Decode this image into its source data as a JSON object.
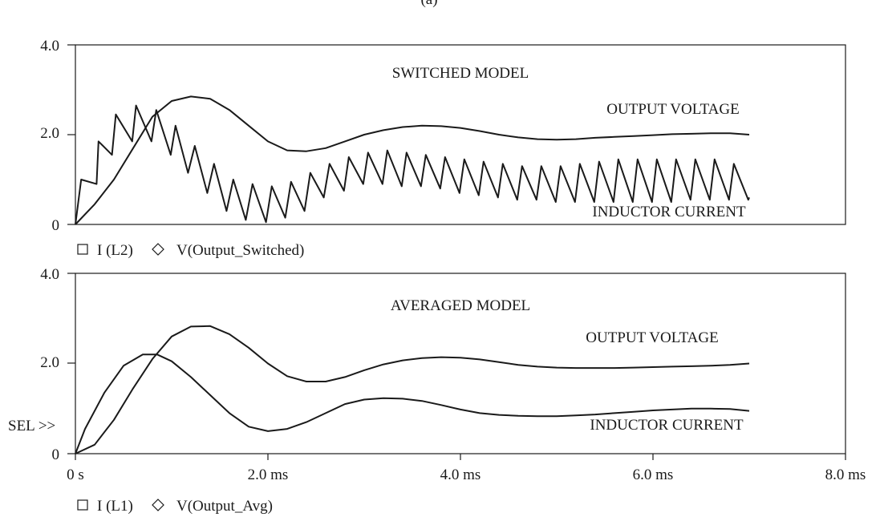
{
  "header": {
    "label": "(a)"
  },
  "chart_data": [
    {
      "type": "line",
      "title": "SWITCHED MODEL",
      "xlabel": "",
      "ylabel": "",
      "xlim": [
        0,
        8.0
      ],
      "ylim": [
        0,
        4.0
      ],
      "y_ticks": [
        "0",
        "2.0",
        "4.0"
      ],
      "x_ticks": [],
      "grid": false,
      "annotations": [
        "SWITCHED MODEL",
        "OUTPUT VOLTAGE",
        "INDUCTOR CURRENT"
      ],
      "legend": [
        "I (L2)",
        "V(Output_Switched)"
      ],
      "series": [
        {
          "name": "I (L2)",
          "x": [
            0,
            0.06,
            0.22,
            0.24,
            0.38,
            0.42,
            0.59,
            0.63,
            0.79,
            0.84,
            0.99,
            1.04,
            1.17,
            1.24,
            1.37,
            1.44,
            1.57,
            1.64,
            1.77,
            1.84,
            1.98,
            2.04,
            2.18,
            2.24,
            2.38,
            2.44,
            2.58,
            2.64,
            2.79,
            2.84,
            2.99,
            3.04,
            3.19,
            3.24,
            3.39,
            3.44,
            3.59,
            3.64,
            3.79,
            3.84,
            3.99,
            4.04,
            4.19,
            4.24,
            4.39,
            4.44,
            4.59,
            4.64,
            4.79,
            4.84,
            4.99,
            5.04,
            5.19,
            5.24,
            5.39,
            5.44,
            5.59,
            5.64,
            5.79,
            5.84,
            5.99,
            6.04,
            6.19,
            6.24,
            6.39,
            6.44,
            6.59,
            6.64,
            6.79,
            6.84,
            6.99,
            7.0
          ],
          "values": [
            0,
            1.0,
            0.9,
            1.85,
            1.55,
            2.45,
            1.85,
            2.65,
            1.85,
            2.55,
            1.55,
            2.2,
            1.15,
            1.75,
            0.7,
            1.35,
            0.3,
            1.0,
            0.1,
            0.9,
            0.05,
            0.85,
            0.15,
            0.95,
            0.3,
            1.15,
            0.6,
            1.35,
            0.75,
            1.5,
            0.9,
            1.6,
            0.9,
            1.65,
            0.85,
            1.6,
            0.85,
            1.55,
            0.8,
            1.5,
            0.7,
            1.45,
            0.65,
            1.4,
            0.6,
            1.35,
            0.55,
            1.3,
            0.55,
            1.3,
            0.5,
            1.3,
            0.5,
            1.35,
            0.5,
            1.4,
            0.5,
            1.45,
            0.5,
            1.45,
            0.5,
            1.45,
            0.5,
            1.45,
            0.55,
            1.45,
            0.55,
            1.45,
            0.55,
            1.35,
            0.55,
            0.6
          ]
        },
        {
          "name": "V(Output_Switched)",
          "x": [
            0,
            0.2,
            0.4,
            0.6,
            0.8,
            1.0,
            1.2,
            1.4,
            1.6,
            1.8,
            2.0,
            2.2,
            2.4,
            2.6,
            2.8,
            3.0,
            3.2,
            3.4,
            3.6,
            3.8,
            4.0,
            4.2,
            4.4,
            4.6,
            4.8,
            5.0,
            5.2,
            5.4,
            5.6,
            5.8,
            6.0,
            6.2,
            6.4,
            6.6,
            6.8,
            7.0
          ],
          "values": [
            0,
            0.45,
            1.0,
            1.7,
            2.4,
            2.75,
            2.85,
            2.8,
            2.55,
            2.2,
            1.85,
            1.65,
            1.63,
            1.7,
            1.85,
            2.0,
            2.1,
            2.17,
            2.2,
            2.19,
            2.15,
            2.08,
            2.0,
            1.94,
            1.9,
            1.89,
            1.9,
            1.93,
            1.95,
            1.97,
            1.99,
            2.01,
            2.02,
            2.03,
            2.03,
            2.0
          ]
        }
      ]
    },
    {
      "type": "line",
      "title": "AVERAGED MODEL",
      "xlabel": "",
      "ylabel": "",
      "xlim": [
        0,
        8.0
      ],
      "ylim": [
        0,
        4.0
      ],
      "y_ticks": [
        "0",
        "2.0",
        "4.0"
      ],
      "x_ticks": [
        "0 s",
        "2.0 ms",
        "4.0 ms",
        "6.0 ms",
        "8.0 ms"
      ],
      "grid": false,
      "annotations": [
        "AVERAGED MODEL",
        "OUTPUT VOLTAGE",
        "INDUCTOR CURRENT",
        "SEL >>"
      ],
      "legend": [
        "I (L1)",
        "V(Output_Avg)"
      ],
      "series": [
        {
          "name": "I (L1)",
          "x": [
            0,
            0.1,
            0.3,
            0.5,
            0.7,
            0.85,
            1.0,
            1.2,
            1.4,
            1.6,
            1.8,
            2.0,
            2.2,
            2.4,
            2.6,
            2.8,
            3.0,
            3.2,
            3.4,
            3.6,
            3.8,
            4.0,
            4.2,
            4.4,
            4.6,
            4.8,
            5.0,
            5.2,
            5.4,
            5.6,
            5.8,
            6.0,
            6.2,
            6.4,
            6.6,
            6.8,
            7.0
          ],
          "values": [
            0,
            0.55,
            1.35,
            1.95,
            2.2,
            2.2,
            2.05,
            1.7,
            1.3,
            0.9,
            0.6,
            0.5,
            0.55,
            0.7,
            0.9,
            1.1,
            1.2,
            1.23,
            1.22,
            1.17,
            1.08,
            0.98,
            0.9,
            0.86,
            0.84,
            0.83,
            0.83,
            0.85,
            0.87,
            0.9,
            0.93,
            0.96,
            0.98,
            1.0,
            1.0,
            0.99,
            0.95
          ]
        },
        {
          "name": "V(Output_Avg)",
          "x": [
            0,
            0.2,
            0.4,
            0.6,
            0.8,
            1.0,
            1.2,
            1.4,
            1.6,
            1.8,
            2.0,
            2.2,
            2.4,
            2.6,
            2.8,
            3.0,
            3.2,
            3.4,
            3.6,
            3.8,
            4.0,
            4.2,
            4.4,
            4.6,
            4.8,
            5.0,
            5.2,
            5.4,
            5.6,
            5.8,
            6.0,
            6.2,
            6.4,
            6.6,
            6.8,
            7.0
          ],
          "values": [
            0,
            0.2,
            0.75,
            1.45,
            2.1,
            2.6,
            2.82,
            2.83,
            2.65,
            2.35,
            2.0,
            1.72,
            1.6,
            1.6,
            1.7,
            1.85,
            1.98,
            2.07,
            2.12,
            2.14,
            2.13,
            2.09,
            2.03,
            1.97,
            1.93,
            1.91,
            1.9,
            1.9,
            1.9,
            1.91,
            1.92,
            1.93,
            1.94,
            1.95,
            1.97,
            2.0
          ]
        }
      ]
    }
  ]
}
